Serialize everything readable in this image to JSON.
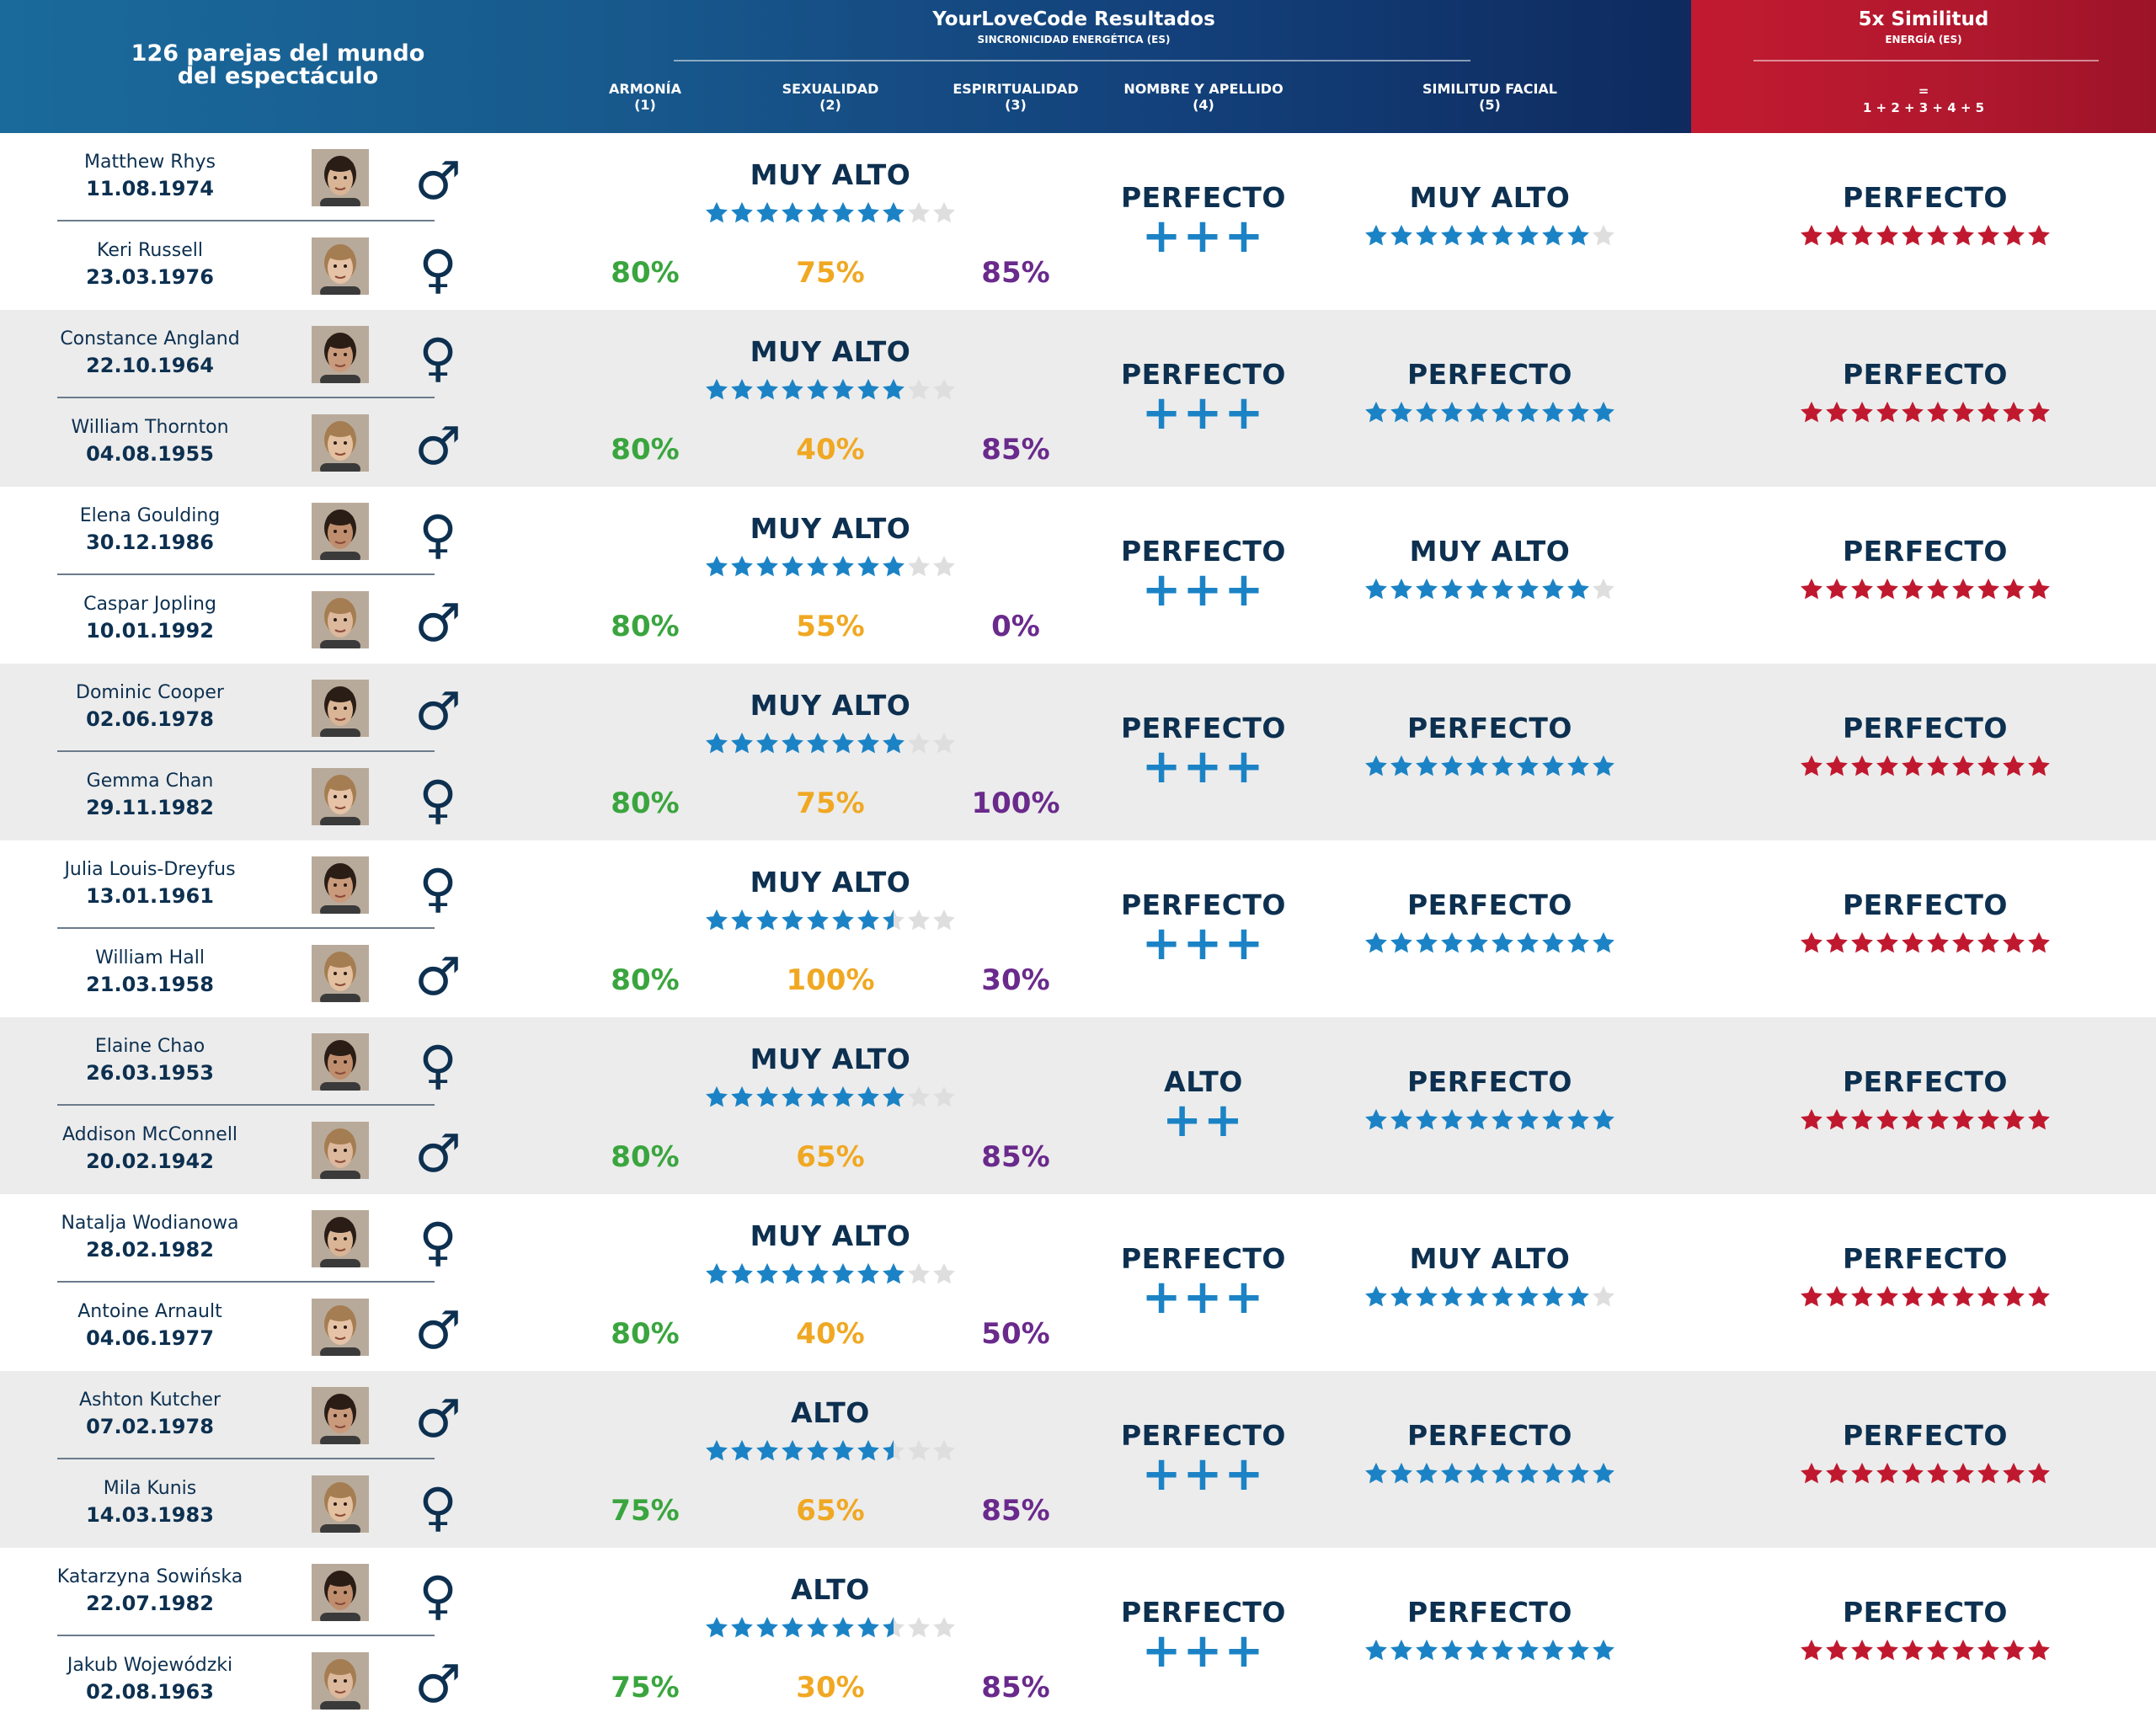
{
  "header": {
    "couples_label": "126 parejas del mundo del espectáculo",
    "title": "YourLoveCode Resultados",
    "subtitle": "SINCRONICIDAD ENERGÉTICA (ES)",
    "columns": [
      {
        "label": "ARMONÍA",
        "num": "(1)"
      },
      {
        "label": "SEXUALIDAD",
        "num": "(2)"
      },
      {
        "label": "ESPIRITUALIDAD",
        "num": "(3)"
      },
      {
        "label": "NOMBRE Y APELLIDO",
        "num": "(4)"
      },
      {
        "label": "SIMILITUD FACIAL",
        "num": "(5)"
      }
    ],
    "red_title": "5x Similitud",
    "red_subtitle": "ENERGÍA (ES)",
    "red_formula_eq": "=",
    "red_formula": "1 + 2 + 3 + 4 + 5"
  },
  "colors": {
    "navy": "#0d3050",
    "star_blue": "#1b83c5",
    "star_red": "#c0192f",
    "star_empty": "#dedede",
    "harmony": "#3aa53e",
    "sexuality": "#f0a823",
    "spirituality": "#6a2a8c"
  },
  "rows": [
    {
      "p1": {
        "name": "Matthew Rhys",
        "date": "11.08.1974",
        "gender": "male"
      },
      "p2": {
        "name": "Keri Russell",
        "date": "23.03.1976",
        "gender": "female"
      },
      "sync_level": "MUY ALTO",
      "sync_stars": 8,
      "harmony": "80%",
      "sexuality": "75%",
      "spirituality": "85%",
      "name_level": "PERFECTO",
      "name_plus": "+++",
      "face_level": "MUY ALTO",
      "face_stars": 9,
      "total_level": "PERFECTO",
      "total_stars": 10
    },
    {
      "p1": {
        "name": "Constance Angland",
        "date": "22.10.1964",
        "gender": "female"
      },
      "p2": {
        "name": "William Thornton",
        "date": "04.08.1955",
        "gender": "male"
      },
      "sync_level": "MUY ALTO",
      "sync_stars": 8,
      "harmony": "80%",
      "sexuality": "40%",
      "spirituality": "85%",
      "name_level": "PERFECTO",
      "name_plus": "+++",
      "face_level": "PERFECTO",
      "face_stars": 10,
      "total_level": "PERFECTO",
      "total_stars": 10
    },
    {
      "p1": {
        "name": "Elena Goulding",
        "date": "30.12.1986",
        "gender": "female"
      },
      "p2": {
        "name": "Caspar Jopling",
        "date": "10.01.1992",
        "gender": "male"
      },
      "sync_level": "MUY ALTO",
      "sync_stars": 8,
      "harmony": "80%",
      "sexuality": "55%",
      "spirituality": "0%",
      "name_level": "PERFECTO",
      "name_plus": "+++",
      "face_level": "MUY ALTO",
      "face_stars": 9,
      "total_level": "PERFECTO",
      "total_stars": 10
    },
    {
      "p1": {
        "name": "Dominic Cooper",
        "date": "02.06.1978",
        "gender": "male"
      },
      "p2": {
        "name": "Gemma Chan",
        "date": "29.11.1982",
        "gender": "female"
      },
      "sync_level": "MUY ALTO",
      "sync_stars": 8,
      "harmony": "80%",
      "sexuality": "75%",
      "spirituality": "100%",
      "name_level": "PERFECTO",
      "name_plus": "+++",
      "face_level": "PERFECTO",
      "face_stars": 10,
      "total_level": "PERFECTO",
      "total_stars": 10
    },
    {
      "p1": {
        "name": "Julia Louis-Dreyfus",
        "date": "13.01.1961",
        "gender": "female"
      },
      "p2": {
        "name": "William Hall",
        "date": "21.03.1958",
        "gender": "male"
      },
      "sync_level": "MUY ALTO",
      "sync_stars": 7.5,
      "harmony": "80%",
      "sexuality": "100%",
      "spirituality": "30%",
      "name_level": "PERFECTO",
      "name_plus": "+++",
      "face_level": "PERFECTO",
      "face_stars": 10,
      "total_level": "PERFECTO",
      "total_stars": 10
    },
    {
      "p1": {
        "name": "Elaine Chao",
        "date": "26.03.1953",
        "gender": "female"
      },
      "p2": {
        "name": "Addison McConnell",
        "date": "20.02.1942",
        "gender": "male"
      },
      "sync_level": "MUY ALTO",
      "sync_stars": 8,
      "harmony": "80%",
      "sexuality": "65%",
      "spirituality": "85%",
      "name_level": "ALTO",
      "name_plus": "++",
      "face_level": "PERFECTO",
      "face_stars": 10,
      "total_level": "PERFECTO",
      "total_stars": 10
    },
    {
      "p1": {
        "name": "Natalja Wodianowa",
        "date": "28.02.1982",
        "gender": "female"
      },
      "p2": {
        "name": "Antoine Arnault",
        "date": "04.06.1977",
        "gender": "male"
      },
      "sync_level": "MUY ALTO",
      "sync_stars": 8,
      "harmony": "80%",
      "sexuality": "40%",
      "spirituality": "50%",
      "name_level": "PERFECTO",
      "name_plus": "+++",
      "face_level": "MUY ALTO",
      "face_stars": 9,
      "total_level": "PERFECTO",
      "total_stars": 10
    },
    {
      "p1": {
        "name": "Ashton Kutcher",
        "date": "07.02.1978",
        "gender": "male"
      },
      "p2": {
        "name": "Mila Kunis",
        "date": "14.03.1983",
        "gender": "female"
      },
      "sync_level": "ALTO",
      "sync_stars": 7.5,
      "harmony": "75%",
      "sexuality": "65%",
      "spirituality": "85%",
      "name_level": "PERFECTO",
      "name_plus": "+++",
      "face_level": "PERFECTO",
      "face_stars": 10,
      "total_level": "PERFECTO",
      "total_stars": 10
    },
    {
      "p1": {
        "name": "Katarzyna Sowińska",
        "date": "22.07.1982",
        "gender": "female"
      },
      "p2": {
        "name": "Jakub Wojewódzki",
        "date": "02.08.1963",
        "gender": "male"
      },
      "sync_level": "ALTO",
      "sync_stars": 7.5,
      "harmony": "75%",
      "sexuality": "30%",
      "spirituality": "85%",
      "name_level": "PERFECTO",
      "name_plus": "+++",
      "face_level": "PERFECTO",
      "face_stars": 10,
      "total_level": "PERFECTO",
      "total_stars": 10
    }
  ]
}
